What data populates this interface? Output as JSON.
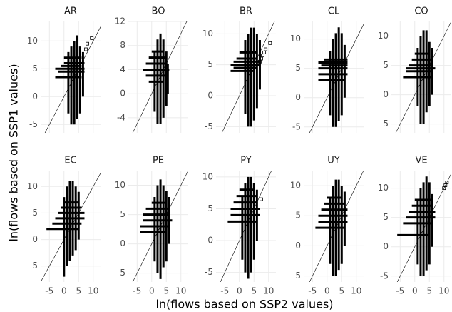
{
  "figure": {
    "x_label": "ln(flows based on SSP2 values)",
    "y_label": "ln(flows based on SSP1 values)"
  },
  "chart_data": [
    {
      "type": "cross",
      "title": "AR",
      "xlim": [
        -8,
        12.5
      ],
      "xticks": [
        -5,
        0,
        5,
        10
      ],
      "ylim": [
        -6.5,
        13.5
      ],
      "yticks": [
        -5,
        0,
        5,
        10
      ],
      "grid": true,
      "identity_line": true,
      "color": "#000000",
      "h": {
        "y": [
          3.5,
          4.5,
          5,
          5.5,
          6,
          7
        ],
        "x0": [
          -3,
          -2,
          -3,
          -1,
          0,
          0
        ],
        "x1": [
          6,
          7,
          7,
          6,
          7,
          6
        ]
      },
      "v": {
        "x": [
          1.5,
          2.5,
          3.5,
          4.5,
          5.5,
          6.5
        ],
        "y0": [
          -3,
          -5,
          -5,
          -4,
          -3,
          0
        ],
        "y1": [
          8,
          9,
          10,
          11,
          9,
          8
        ]
      },
      "points": {
        "x": [
          7.5,
          8,
          9.5
        ],
        "y": [
          8.5,
          9.5,
          10.5
        ]
      }
    },
    {
      "type": "cross",
      "title": "BO",
      "xlim": [
        -8,
        12.5
      ],
      "xticks": [
        -5,
        0,
        5,
        10
      ],
      "ylim": [
        -6.5,
        12
      ],
      "yticks": [
        -4,
        0,
        4,
        8,
        12
      ],
      "grid": true,
      "identity_line": true,
      "color": "#000000",
      "h": {
        "y": [
          2,
          3,
          4,
          5,
          6,
          7
        ],
        "x0": [
          -1,
          -2,
          -3,
          -2,
          -1,
          0
        ],
        "x1": [
          4,
          5,
          6,
          5,
          5,
          4
        ]
      },
      "v": {
        "x": [
          1,
          2,
          3,
          4,
          5,
          5.5
        ],
        "y0": [
          -3,
          -5,
          -5,
          -4,
          -2,
          0
        ],
        "y1": [
          7,
          9,
          10,
          9,
          7,
          5
        ]
      }
    },
    {
      "type": "cross",
      "title": "BR",
      "xlim": [
        -8,
        12.5
      ],
      "xticks": [
        -5,
        0,
        5,
        10
      ],
      "ylim": [
        -6,
        12
      ],
      "yticks": [
        -5,
        0,
        5,
        10
      ],
      "grid": true,
      "identity_line": true,
      "color": "#000000",
      "h": {
        "y": [
          4,
          4.5,
          5,
          5.5,
          6,
          7
        ],
        "x0": [
          -3,
          -2,
          -3,
          -2,
          -1,
          0
        ],
        "x1": [
          5,
          6,
          7,
          7,
          6,
          6
        ]
      },
      "v": {
        "x": [
          2,
          3,
          4,
          5,
          6,
          7
        ],
        "y0": [
          -3,
          -5,
          -5,
          -4,
          -2,
          1
        ],
        "y1": [
          9,
          10,
          11,
          11,
          10,
          9
        ]
      },
      "points": {
        "x": [
          7,
          7.5,
          8,
          8.5,
          9,
          10.5
        ],
        "y": [
          5.5,
          6,
          6.5,
          7,
          7.5,
          8.5
        ]
      }
    },
    {
      "type": "cross",
      "title": "CL",
      "xlim": [
        -8,
        12.5
      ],
      "xticks": [
        -5,
        0,
        5,
        10
      ],
      "ylim": [
        -6,
        13
      ],
      "yticks": [
        -5,
        0,
        5,
        10
      ],
      "grid": true,
      "identity_line": true,
      "color": "#000000",
      "h": {
        "y": [
          3,
          4,
          5,
          5.5,
          6,
          6.5
        ],
        "x0": [
          -3,
          -3,
          -3,
          -2,
          -3,
          -1
        ],
        "x1": [
          6,
          7,
          7,
          7,
          7,
          7
        ]
      },
      "v": {
        "x": [
          1,
          2,
          3,
          4,
          5,
          6
        ],
        "y0": [
          -3,
          -5,
          -5,
          -4,
          -3,
          0
        ],
        "y1": [
          8,
          10,
          11,
          12,
          11,
          9
        ]
      }
    },
    {
      "type": "cross",
      "title": "CO",
      "xlim": [
        -8,
        12.5
      ],
      "xticks": [
        -5,
        0,
        5,
        10
      ],
      "ylim": [
        -6.5,
        12.5
      ],
      "yticks": [
        -5,
        0,
        5,
        10
      ],
      "grid": true,
      "identity_line": true,
      "color": "#000000",
      "h": {
        "y": [
          3,
          4,
          4.5,
          5,
          6,
          7
        ],
        "x0": [
          -4,
          -3,
          -3,
          -2,
          -1,
          0
        ],
        "x1": [
          6,
          6,
          7,
          6,
          6,
          5
        ]
      },
      "v": {
        "x": [
          1,
          2,
          3,
          4,
          5,
          6
        ],
        "y0": [
          -2,
          -5,
          -5,
          -3,
          -2,
          0
        ],
        "y1": [
          8,
          10,
          11,
          11,
          9,
          8
        ]
      }
    },
    {
      "type": "cross",
      "title": "EC",
      "xlim": [
        -8,
        12.5
      ],
      "xticks": [
        -5,
        0,
        5,
        10
      ],
      "ylim": [
        -8,
        13
      ],
      "yticks": [
        -5,
        0,
        5,
        10
      ],
      "grid": true,
      "identity_line": true,
      "color": "#000000",
      "h": {
        "y": [
          2,
          3,
          4,
          5,
          6,
          7
        ],
        "x0": [
          -6,
          -4,
          -3,
          -2,
          -1,
          0
        ],
        "x1": [
          5,
          6,
          7,
          7,
          6,
          5
        ]
      },
      "v": {
        "x": [
          0,
          1,
          2,
          3,
          4,
          5
        ],
        "y0": [
          -7,
          -5,
          -4,
          -3,
          -2,
          0
        ],
        "y1": [
          8,
          10,
          11,
          11,
          10,
          9
        ]
      }
    },
    {
      "type": "cross",
      "title": "PE",
      "xlim": [
        -8,
        12.5
      ],
      "xticks": [
        -5,
        0,
        5,
        10
      ],
      "ylim": [
        -6.5,
        12.5
      ],
      "yticks": [
        -5,
        0,
        5,
        10
      ],
      "grid": true,
      "identity_line": true,
      "color": "#000000",
      "h": {
        "y": [
          2,
          3,
          4,
          5,
          6,
          7
        ],
        "x0": [
          -4,
          -4,
          -3,
          -3,
          -2,
          0
        ],
        "x1": [
          5,
          6,
          7,
          6,
          6,
          5
        ]
      },
      "v": {
        "x": [
          1,
          2,
          3,
          4,
          5,
          6
        ],
        "y0": [
          -3,
          -5,
          -6,
          -4,
          -3,
          0
        ],
        "y1": [
          8,
          10,
          11,
          10,
          9,
          8
        ]
      }
    },
    {
      "type": "cross",
      "title": "PY",
      "xlim": [
        -8,
        12.5
      ],
      "xticks": [
        -5,
        0,
        5,
        10
      ],
      "ylim": [
        -6.5,
        11
      ],
      "yticks": [
        -5,
        0,
        5,
        10
      ],
      "grid": true,
      "identity_line": true,
      "color": "#000000",
      "h": {
        "y": [
          3,
          4,
          5,
          6,
          7,
          8
        ],
        "x0": [
          -4,
          -3,
          -3,
          -2,
          -1,
          0
        ],
        "x1": [
          6,
          7,
          7,
          6,
          6,
          5
        ]
      },
      "v": {
        "x": [
          1,
          2,
          3,
          4,
          5,
          6
        ],
        "y0": [
          -3,
          -5,
          -6,
          -5,
          -3,
          0
        ],
        "y1": [
          7,
          9,
          10,
          10,
          9,
          8
        ]
      },
      "points": {
        "x": [
          7.5
        ],
        "y": [
          6.5
        ]
      }
    },
    {
      "type": "cross",
      "title": "UY",
      "xlim": [
        -8,
        12.5
      ],
      "xticks": [
        -5,
        0,
        5,
        10
      ],
      "ylim": [
        -6,
        12.5
      ],
      "yticks": [
        -5,
        0,
        5,
        10
      ],
      "grid": true,
      "identity_line": true,
      "color": "#000000",
      "h": {
        "y": [
          3,
          4,
          5,
          6,
          7,
          8
        ],
        "x0": [
          -4,
          -3,
          -3,
          -2,
          -1,
          0
        ],
        "x1": [
          6,
          7,
          7,
          7,
          6,
          5
        ]
      },
      "v": {
        "x": [
          1,
          2,
          3,
          4,
          5,
          6
        ],
        "y0": [
          -3,
          -5,
          -5,
          -4,
          -3,
          0
        ],
        "y1": [
          8,
          10,
          11,
          11,
          10,
          9
        ]
      }
    },
    {
      "type": "cross",
      "title": "VE",
      "xlim": [
        -8,
        12.5
      ],
      "xticks": [
        -5,
        0,
        5,
        10
      ],
      "ylim": [
        -6,
        13
      ],
      "yticks": [
        -5,
        0,
        5,
        10
      ],
      "grid": true,
      "identity_line": true,
      "color": "#000000",
      "h": {
        "y": [
          2,
          4,
          5,
          6,
          7,
          8
        ],
        "x0": [
          -6,
          -4,
          -3,
          -2,
          -1,
          0
        ],
        "x1": [
          5,
          6,
          7,
          7,
          6,
          6
        ]
      },
      "v": {
        "x": [
          1,
          2,
          3,
          4,
          5,
          6
        ],
        "y0": [
          -3,
          -5,
          -5,
          -4,
          -3,
          0
        ],
        "y1": [
          8,
          10,
          11,
          12,
          11,
          9
        ]
      },
      "points": {
        "x": [
          10,
          10.5,
          11
        ],
        "y": [
          10,
          10.5,
          11
        ]
      }
    }
  ]
}
